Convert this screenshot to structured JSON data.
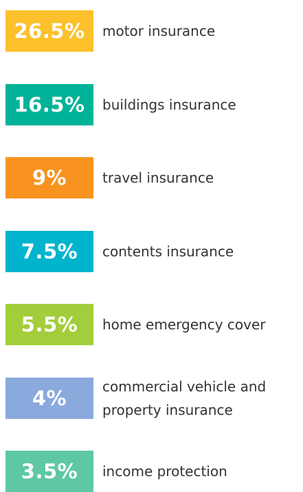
{
  "items": [
    {
      "value": "26.5%",
      "label": "motor insurance",
      "color": "#fcc12b"
    },
    {
      "value": "16.5%",
      "label": "buildings insurance",
      "color": "#00b398"
    },
    {
      "value": "9%",
      "label": "travel insurance",
      "color": "#f7931e"
    },
    {
      "value": "7.5%",
      "label": "contents insurance",
      "color": "#00b4cd"
    },
    {
      "value": "5.5%",
      "label": "home emergency cover",
      "color": "#a3cd3b"
    },
    {
      "value": "4%",
      "label": "commercial vehicle and property insurance",
      "color": "#8aa9dd"
    },
    {
      "value": "3.5%",
      "label": "income protection",
      "color": "#5ec7a6"
    }
  ]
}
